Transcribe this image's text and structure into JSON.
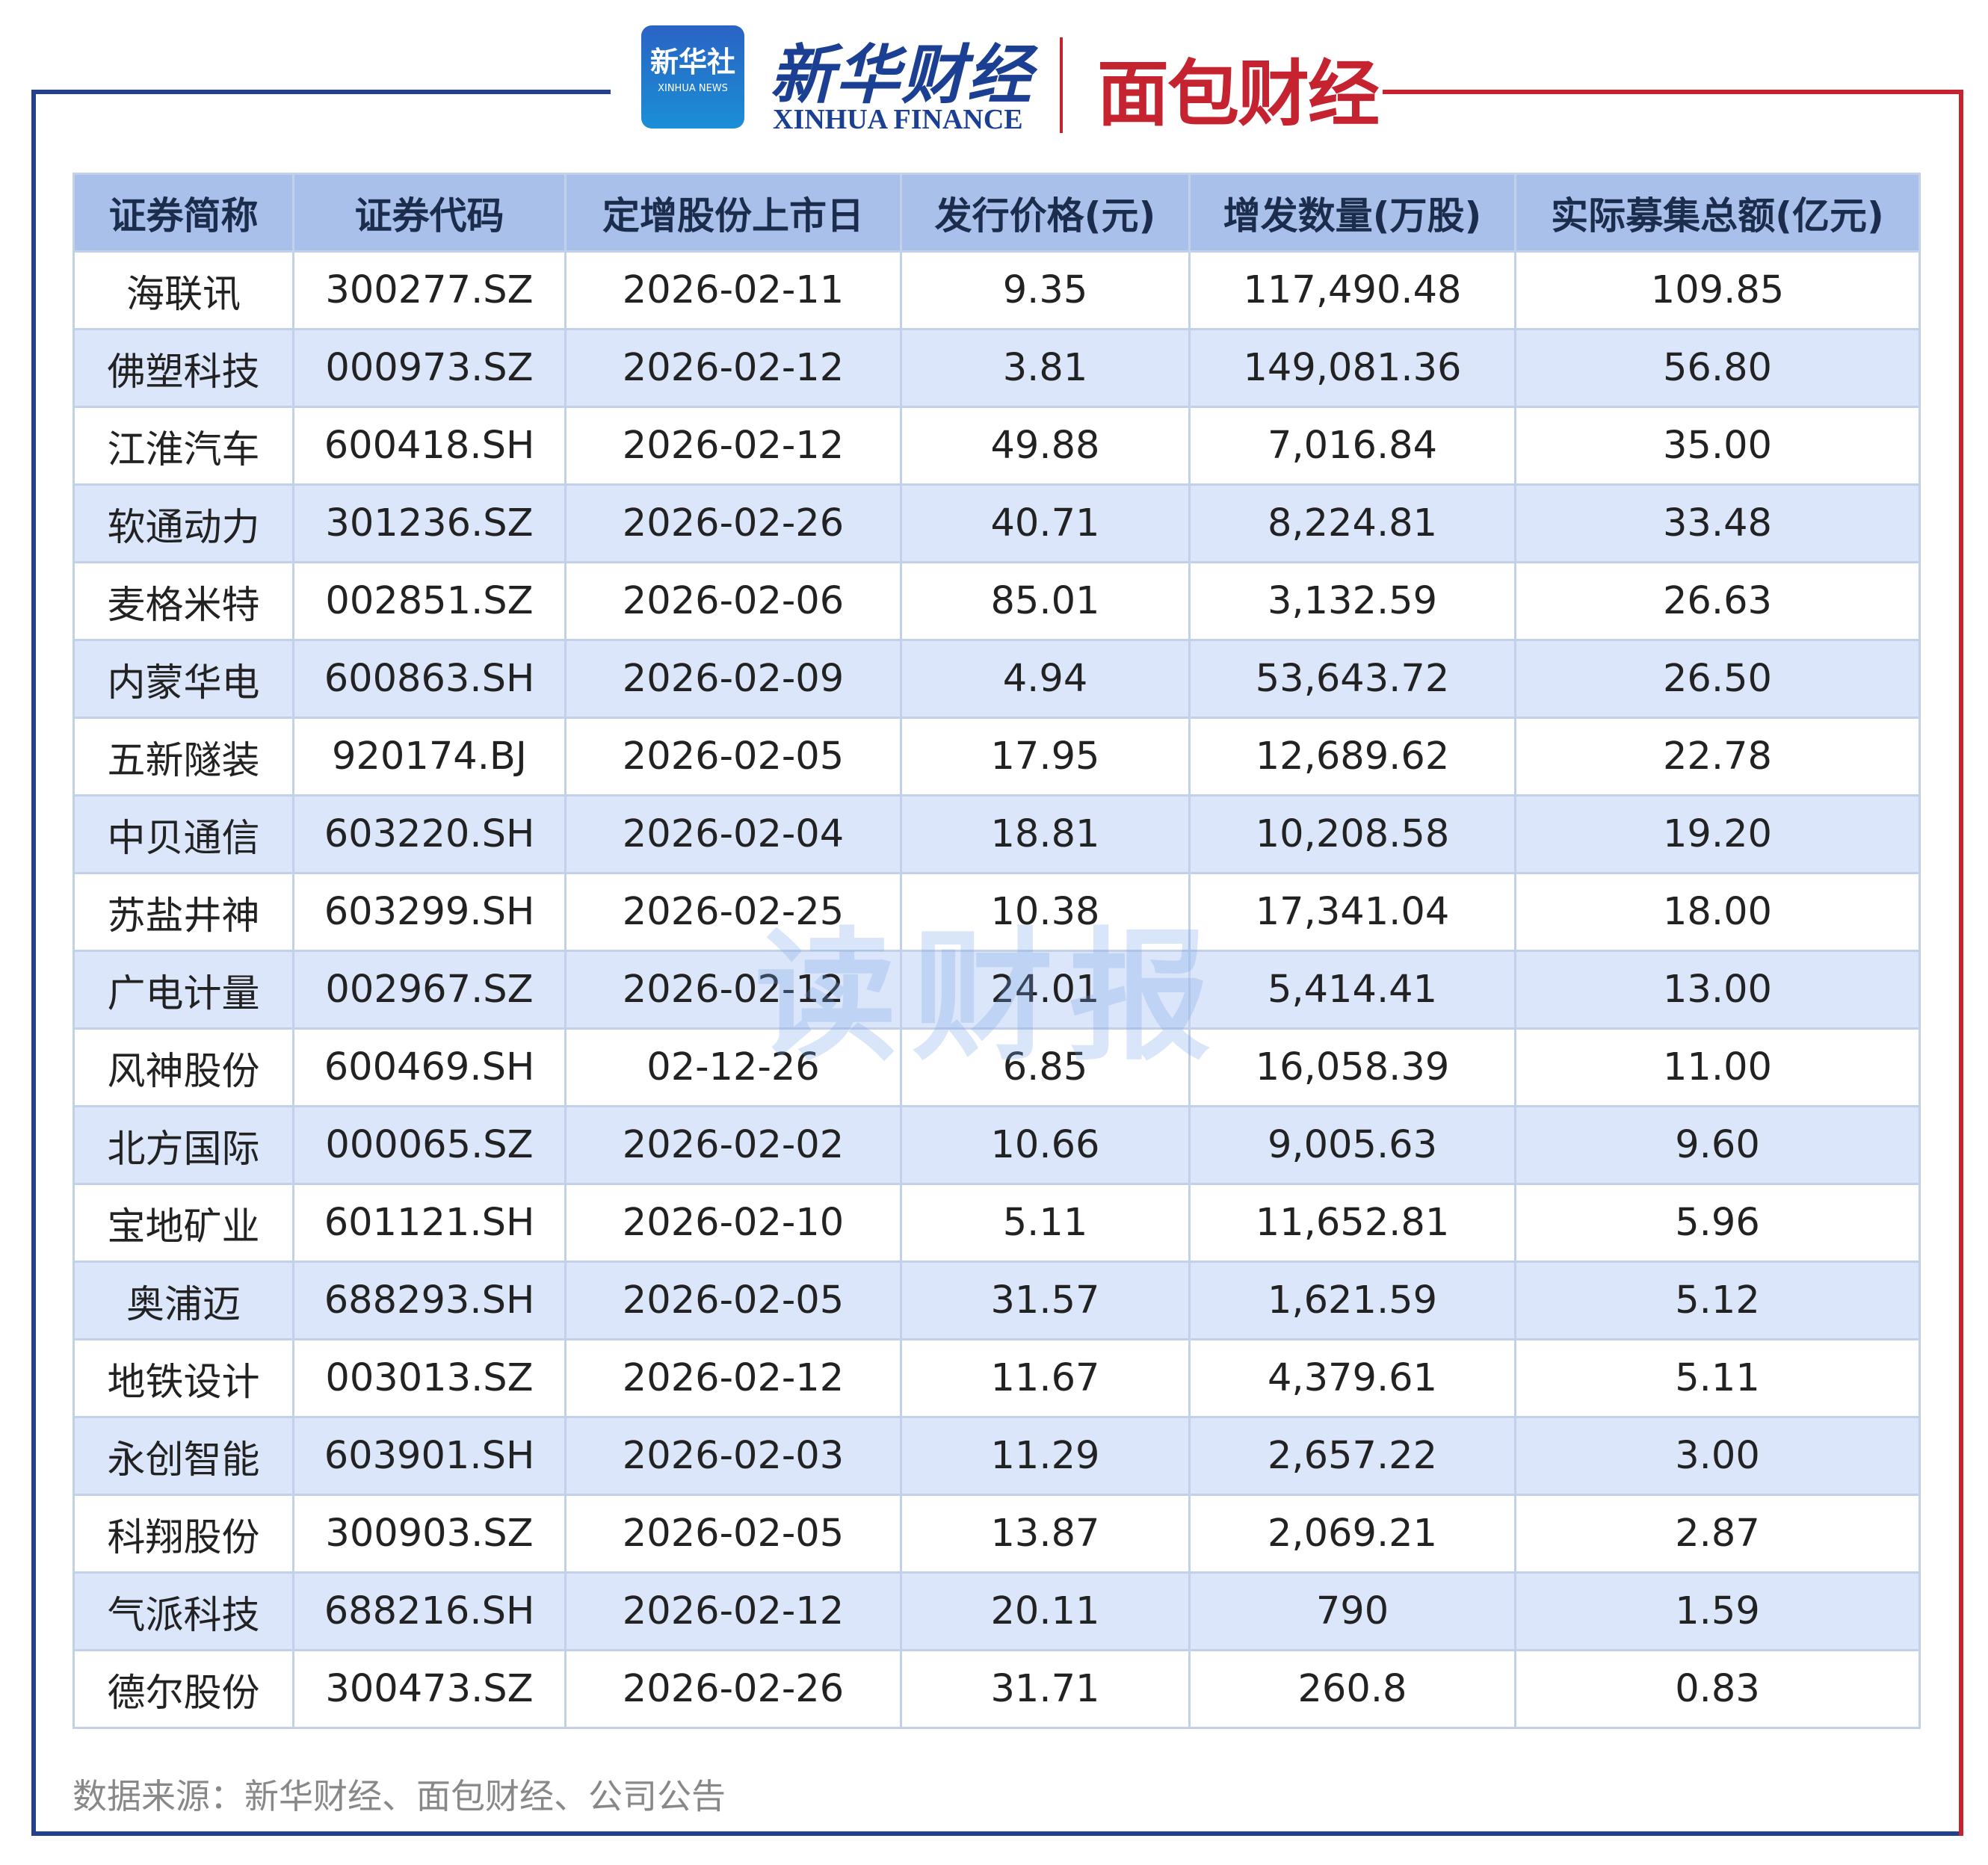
{
  "header": {
    "logo_badge": "新华社",
    "logo_badge_en": "XINHUA NEWS",
    "brand": "新华财经",
    "brand_en": "XINHUA FINANCE",
    "partner": "面包财经"
  },
  "watermark": "读财报",
  "table": {
    "columns": [
      "证券简称",
      "证券代码",
      "定增股份上市日",
      "发行价格(元)",
      "增发数量(万股)",
      "实际募集总额(亿元)"
    ],
    "rows": [
      [
        "海联讯",
        "300277.SZ",
        "2026-02-11",
        "9.35",
        "117,490.48",
        "109.85"
      ],
      [
        "佛塑科技",
        "000973.SZ",
        "2026-02-12",
        "3.81",
        "149,081.36",
        "56.80"
      ],
      [
        "江淮汽车",
        "600418.SH",
        "2026-02-12",
        "49.88",
        "7,016.84",
        "35.00"
      ],
      [
        "软通动力",
        "301236.SZ",
        "2026-02-26",
        "40.71",
        "8,224.81",
        "33.48"
      ],
      [
        "麦格米特",
        "002851.SZ",
        "2026-02-06",
        "85.01",
        "3,132.59",
        "26.63"
      ],
      [
        "内蒙华电",
        "600863.SH",
        "2026-02-09",
        "4.94",
        "53,643.72",
        "26.50"
      ],
      [
        "五新隧装",
        "920174.BJ",
        "2026-02-05",
        "17.95",
        "12,689.62",
        "22.78"
      ],
      [
        "中贝通信",
        "603220.SH",
        "2026-02-04",
        "18.81",
        "10,208.58",
        "19.20"
      ],
      [
        "苏盐井神",
        "603299.SH",
        "2026-02-25",
        "10.38",
        "17,341.04",
        "18.00"
      ],
      [
        "广电计量",
        "002967.SZ",
        "2026-02-12",
        "24.01",
        "5,414.41",
        "13.00"
      ],
      [
        "风神股份",
        "600469.SH",
        "02-12-26",
        "6.85",
        "16,058.39",
        "11.00"
      ],
      [
        "北方国际",
        "000065.SZ",
        "2026-02-02",
        "10.66",
        "9,005.63",
        "9.60"
      ],
      [
        "宝地矿业",
        "601121.SH",
        "2026-02-10",
        "5.11",
        "11,652.81",
        "5.96"
      ],
      [
        "奥浦迈",
        "688293.SH",
        "2026-02-05",
        "31.57",
        "1,621.59",
        "5.12"
      ],
      [
        "地铁设计",
        "003013.SZ",
        "2026-02-12",
        "11.67",
        "4,379.61",
        "5.11"
      ],
      [
        "永创智能",
        "603901.SH",
        "2026-02-03",
        "11.29",
        "2,657.22",
        "3.00"
      ],
      [
        "科翔股份",
        "300903.SZ",
        "2026-02-05",
        "13.87",
        "2,069.21",
        "2.87"
      ],
      [
        "气派科技",
        "688216.SH",
        "2026-02-12",
        "20.11",
        "790",
        "1.59"
      ],
      [
        "德尔股份",
        "300473.SZ",
        "2026-02-26",
        "31.71",
        "260.8",
        "0.83"
      ]
    ]
  },
  "footer": {
    "source": "数据来源：新华财经、面包财经、公司公告"
  }
}
